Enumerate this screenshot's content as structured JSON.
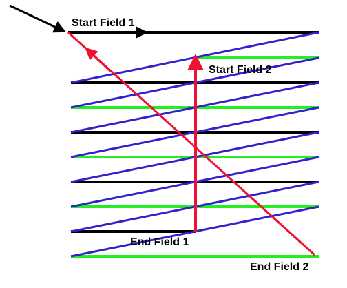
{
  "diagram": {
    "labels": {
      "start_field_1": "Start Field 1",
      "start_field_2": "Start Field 2",
      "end_field_1": "End Field 1",
      "end_field_2": "End Field 2"
    },
    "colors": {
      "field_1_line": "#000000",
      "field_2_line": "#22ee22",
      "scan_retrace": "#3322cc",
      "vertical_retrace": "#ee1133",
      "pointer_arrow": "#000000"
    }
  }
}
